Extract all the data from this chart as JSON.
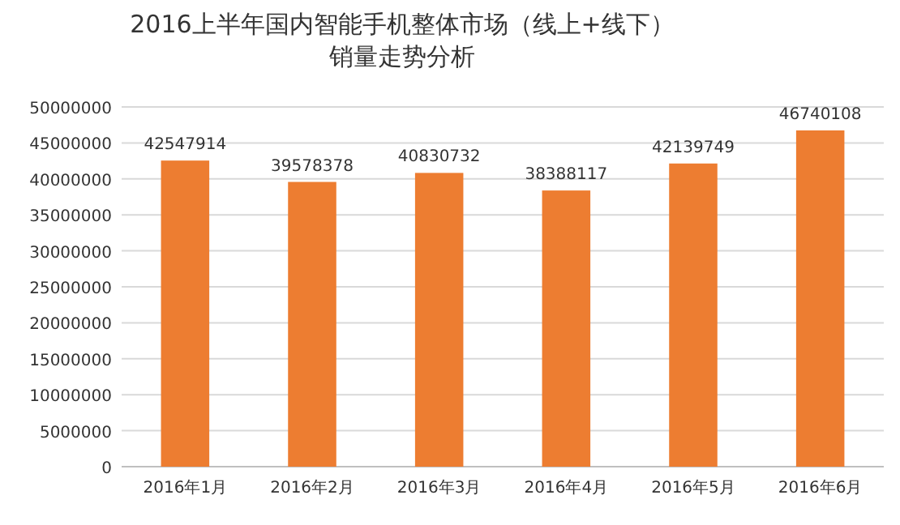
{
  "chart_data": {
    "type": "bar",
    "title": "2016上半年国内智能手机整体市场（线上+线下）",
    "subtitle": "销量走势分析",
    "categories": [
      "2016年1月",
      "2016年2月",
      "2016年3月",
      "2016年4月",
      "2016年5月",
      "2016年6月"
    ],
    "values": [
      42547914,
      39578378,
      40830732,
      38388117,
      42139749,
      46740108
    ],
    "color": "#ed7d31",
    "ylim": [
      0,
      50000000
    ],
    "yticks": [
      0,
      5000000,
      10000000,
      15000000,
      20000000,
      25000000,
      30000000,
      35000000,
      40000000,
      45000000,
      50000000
    ],
    "grid": "y",
    "data_labels": true
  }
}
